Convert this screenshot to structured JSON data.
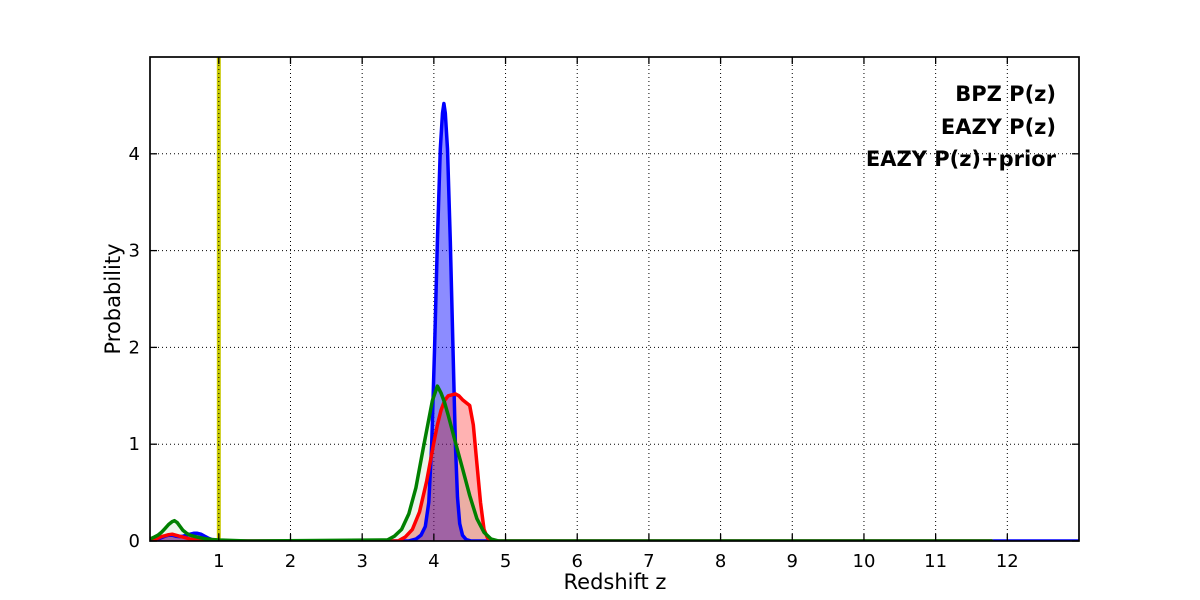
{
  "chart_data": {
    "type": "line",
    "title": "",
    "xlabel": "Redshift z",
    "ylabel": "Probability",
    "xlim": [
      0.04,
      13.0
    ],
    "ylim": [
      0,
      5
    ],
    "xticks": [
      1,
      2,
      3,
      4,
      5,
      6,
      7,
      8,
      9,
      10,
      11,
      12
    ],
    "yticks": [
      0,
      1,
      2,
      3,
      4
    ],
    "grid": true,
    "grid_style": "dotted",
    "grid_color": "#000000",
    "background": "#ffffff",
    "legend": {
      "position": "upper right",
      "entries": [
        {
          "label": "BPZ P(z)",
          "color": "#0000ff"
        },
        {
          "label": "EAZY P(z)",
          "color": "#ff0000"
        },
        {
          "label": "EAZY P(z)+prior",
          "color": "#008000"
        }
      ]
    },
    "annotations": [
      {
        "type": "vline",
        "name": "reference-redshift-line",
        "x": 1.0,
        "color": "#c8c800",
        "width": 4
      }
    ],
    "series": [
      {
        "name": "BPZ P(z)",
        "color": "#0000ff",
        "fill_alpha": 0.45,
        "line_width": 3.5,
        "points": [
          [
            0.04,
            0.0
          ],
          [
            0.1,
            0.01
          ],
          [
            0.15,
            0.02
          ],
          [
            0.2,
            0.035
          ],
          [
            0.25,
            0.05
          ],
          [
            0.3,
            0.06
          ],
          [
            0.35,
            0.06
          ],
          [
            0.4,
            0.05
          ],
          [
            0.45,
            0.045
          ],
          [
            0.5,
            0.05
          ],
          [
            0.55,
            0.06
          ],
          [
            0.6,
            0.07
          ],
          [
            0.65,
            0.08
          ],
          [
            0.7,
            0.08
          ],
          [
            0.75,
            0.07
          ],
          [
            0.8,
            0.05
          ],
          [
            0.85,
            0.03
          ],
          [
            0.9,
            0.015
          ],
          [
            1.0,
            0.005
          ],
          [
            1.1,
            0.0
          ],
          [
            3.65,
            0.0
          ],
          [
            3.75,
            0.02
          ],
          [
            3.82,
            0.06
          ],
          [
            3.88,
            0.15
          ],
          [
            3.93,
            0.4
          ],
          [
            3.97,
            1.0
          ],
          [
            4.01,
            2.0
          ],
          [
            4.05,
            3.1
          ],
          [
            4.09,
            4.05
          ],
          [
            4.12,
            4.42
          ],
          [
            4.14,
            4.52
          ],
          [
            4.16,
            4.42
          ],
          [
            4.19,
            4.05
          ],
          [
            4.23,
            3.1
          ],
          [
            4.27,
            1.9
          ],
          [
            4.3,
            1.0
          ],
          [
            4.33,
            0.45
          ],
          [
            4.36,
            0.18
          ],
          [
            4.4,
            0.06
          ],
          [
            4.45,
            0.015
          ],
          [
            4.52,
            0.0
          ],
          [
            13.0,
            0.0
          ]
        ]
      },
      {
        "name": "EAZY P(z)",
        "color": "#ff0000",
        "fill_alpha": 0.3,
        "line_width": 3.5,
        "points": [
          [
            0.04,
            0.0
          ],
          [
            0.1,
            0.01
          ],
          [
            0.15,
            0.03
          ],
          [
            0.2,
            0.045
          ],
          [
            0.25,
            0.055
          ],
          [
            0.3,
            0.065
          ],
          [
            0.35,
            0.07
          ],
          [
            0.4,
            0.06
          ],
          [
            0.45,
            0.05
          ],
          [
            0.5,
            0.04
          ],
          [
            0.55,
            0.03
          ],
          [
            0.6,
            0.02
          ],
          [
            0.7,
            0.01
          ],
          [
            0.8,
            0.005
          ],
          [
            0.9,
            0.0
          ],
          [
            3.5,
            0.0
          ],
          [
            3.6,
            0.04
          ],
          [
            3.7,
            0.12
          ],
          [
            3.8,
            0.3
          ],
          [
            3.9,
            0.62
          ],
          [
            3.95,
            0.82
          ],
          [
            4.0,
            1.02
          ],
          [
            4.05,
            1.2
          ],
          [
            4.1,
            1.35
          ],
          [
            4.15,
            1.45
          ],
          [
            4.2,
            1.5
          ],
          [
            4.3,
            1.52
          ],
          [
            4.35,
            1.5
          ],
          [
            4.4,
            1.46
          ],
          [
            4.45,
            1.43
          ],
          [
            4.5,
            1.4
          ],
          [
            4.55,
            1.2
          ],
          [
            4.6,
            0.8
          ],
          [
            4.65,
            0.4
          ],
          [
            4.7,
            0.12
          ],
          [
            4.75,
            0.03
          ],
          [
            4.82,
            0.0
          ],
          [
            11.78,
            0.0
          ]
        ]
      },
      {
        "name": "EAZY P(z)+prior",
        "color": "#008000",
        "fill_alpha": 0.08,
        "line_width": 3.5,
        "points": [
          [
            0.04,
            0.02
          ],
          [
            0.1,
            0.04
          ],
          [
            0.15,
            0.06
          ],
          [
            0.2,
            0.09
          ],
          [
            0.25,
            0.13
          ],
          [
            0.3,
            0.17
          ],
          [
            0.35,
            0.2
          ],
          [
            0.38,
            0.21
          ],
          [
            0.42,
            0.19
          ],
          [
            0.46,
            0.15
          ],
          [
            0.5,
            0.11
          ],
          [
            0.55,
            0.08
          ],
          [
            0.6,
            0.06
          ],
          [
            0.65,
            0.05
          ],
          [
            0.7,
            0.04
          ],
          [
            0.8,
            0.025
          ],
          [
            0.9,
            0.015
          ],
          [
            1.0,
            0.01
          ],
          [
            1.2,
            0.005
          ],
          [
            1.4,
            0.0
          ],
          [
            3.35,
            0.01
          ],
          [
            3.45,
            0.05
          ],
          [
            3.55,
            0.12
          ],
          [
            3.65,
            0.28
          ],
          [
            3.75,
            0.55
          ],
          [
            3.85,
            0.95
          ],
          [
            3.92,
            1.22
          ],
          [
            3.98,
            1.45
          ],
          [
            4.05,
            1.6
          ],
          [
            4.1,
            1.53
          ],
          [
            4.15,
            1.43
          ],
          [
            4.2,
            1.3
          ],
          [
            4.3,
            1.02
          ],
          [
            4.4,
            0.75
          ],
          [
            4.5,
            0.47
          ],
          [
            4.6,
            0.23
          ],
          [
            4.7,
            0.09
          ],
          [
            4.8,
            0.02
          ],
          [
            4.9,
            0.0
          ],
          [
            11.78,
            0.0
          ]
        ]
      }
    ]
  }
}
